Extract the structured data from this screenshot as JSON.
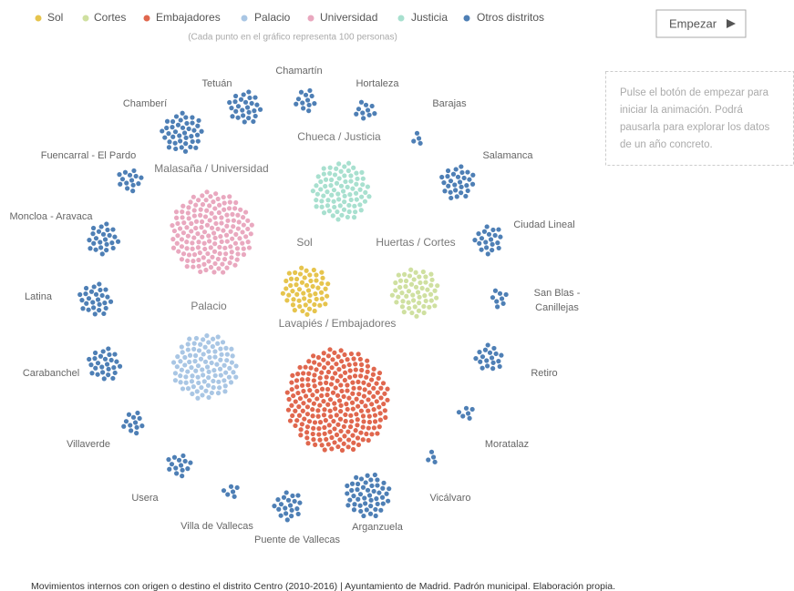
{
  "legend": [
    {
      "name": "Sol",
      "color": "#e6c44d"
    },
    {
      "name": "Cortes",
      "color": "#cfe0a0"
    },
    {
      "name": "Embajadores",
      "color": "#e0674e"
    },
    {
      "name": "Palacio",
      "color": "#a9c6e4"
    },
    {
      "name": "Universidad",
      "color": "#e9a8bf"
    },
    {
      "name": "Justicia",
      "color": "#a8e0cf"
    },
    {
      "name": "Otros distritos",
      "color": "#4e7fb5"
    }
  ],
  "note": "(Cada punto en el gráfico representa 100 personas)",
  "button": "Empezar",
  "info": [
    "Pulse el botón de empezar para",
    "iniciar la animación. Podrá",
    "pausarla para explorar los datos",
    "de un año concreto."
  ],
  "clusters": [
    {
      "label": "Chueca / Justicia",
      "dots": 80,
      "color": "#a8e0cf"
    },
    {
      "label": "Malasaña / Universidad",
      "dots": 160,
      "color": "#e9a8bf"
    },
    {
      "label": "Sol",
      "dots": 55,
      "color": "#e6c44d"
    },
    {
      "label": "Huertas / Cortes",
      "dots": 55,
      "color": "#cfe0a0"
    },
    {
      "label": "Palacio",
      "dots": 100,
      "color": "#a9c6e4"
    },
    {
      "label": "Lavapiés / Embajadores",
      "dots": 250,
      "color": "#e0674e"
    },
    {
      "label": "Chamartín",
      "dots": 12,
      "color": "#4e7fb5"
    },
    {
      "label": "Hortaleza",
      "dots": 10,
      "color": "#4e7fb5"
    },
    {
      "label": "Barajas",
      "dots": 4,
      "color": "#4e7fb5"
    },
    {
      "label": "Salamanca",
      "dots": 28,
      "color": "#4e7fb5"
    },
    {
      "label": "Ciudad Lineal",
      "dots": 20,
      "color": "#4e7fb5"
    },
    {
      "label": [
        "San Blas -",
        "Canillejas"
      ],
      "dots": 8,
      "color": "#4e7fb5"
    },
    {
      "label": "Retiro",
      "dots": 18,
      "color": "#4e7fb5"
    },
    {
      "label": "Moratalaz",
      "dots": 6,
      "color": "#4e7fb5"
    },
    {
      "label": "Vicálvaro",
      "dots": 4,
      "color": "#4e7fb5"
    },
    {
      "label": "Arganzuela",
      "dots": 48,
      "color": "#4e7fb5"
    },
    {
      "label": "Puente de Vallecas",
      "dots": 20,
      "color": "#4e7fb5"
    },
    {
      "label": "Villa de Vallecas",
      "dots": 6,
      "color": "#4e7fb5"
    },
    {
      "label": "Usera",
      "dots": 14,
      "color": "#4e7fb5"
    },
    {
      "label": "Villaverde",
      "dots": 12,
      "color": "#4e7fb5"
    },
    {
      "label": "Carabanchel",
      "dots": 26,
      "color": "#4e7fb5"
    },
    {
      "label": "Latina",
      "dots": 26,
      "color": "#4e7fb5"
    },
    {
      "label": "Moncloa - Aravaca",
      "dots": 24,
      "color": "#4e7fb5"
    },
    {
      "label": "Fuencarral - El Pardo",
      "dots": 14,
      "color": "#4e7fb5"
    },
    {
      "label": "Chamberí",
      "dots": 40,
      "color": "#4e7fb5"
    },
    {
      "label": "Tetuán",
      "dots": 26,
      "color": "#4e7fb5"
    }
  ],
  "footer": "Movimientos internos con origen o destino el distrito Centro (2010-2016)  |  Ayuntamiento de Madrid. Padrón municipal. Elaboración propia."
}
